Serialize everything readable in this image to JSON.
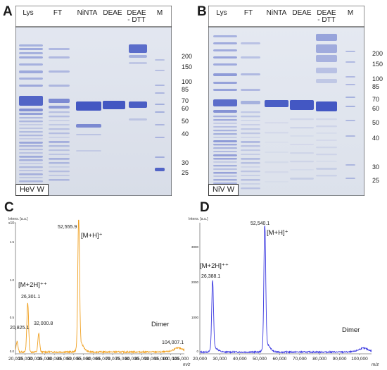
{
  "figure": {
    "panels": [
      {
        "letter": "A",
        "type": "sds-page-gel",
        "gel_label": "HeV W",
        "lanes": [
          "Lys",
          "FT",
          "NiNTA",
          "DEAE",
          "DEAE\n- DTT",
          "M"
        ],
        "marker_kda": [
          "200",
          "150",
          "100",
          "85",
          "70",
          "60",
          "50",
          "40",
          "30",
          "25"
        ],
        "colors": {
          "stain": "#3a4fc0",
          "background": "#dfe5ee"
        }
      },
      {
        "letter": "B",
        "type": "sds-page-gel",
        "gel_label": "NiV W",
        "lanes": [
          "Lys",
          "FT",
          "NiNTA",
          "DEAE",
          "DEAE\n- DTT",
          "M"
        ],
        "marker_kda": [
          "200",
          "150",
          "100",
          "85",
          "70",
          "60",
          "50",
          "40",
          "30",
          "25"
        ],
        "colors": {
          "stain": "#3a4fc0",
          "background": "#e3e8ef"
        }
      },
      {
        "letter": "C",
        "type": "mass-spectrum",
        "color": "#f0a020",
        "peak_labels": [
          {
            "text": "52,555.9",
            "mz": 52555.9
          },
          {
            "text": "26,301.1",
            "mz": 26301.1
          },
          {
            "text": "32,000.8",
            "mz": 32000.8
          },
          {
            "text": "20,825.1",
            "mz": 20825.1
          },
          {
            "text": "104,007.1",
            "mz": 104007.1
          }
        ],
        "ion_labels": [
          "[M+H]⁺",
          "[M+2H]⁺⁺",
          "Dimer"
        ],
        "x_ticks": [
          "20,000",
          "25,000",
          "30,000",
          "35,000",
          "40,000",
          "45,000",
          "50,000",
          "55,000",
          "60,000",
          "65,000",
          "70,000",
          "75,000",
          "80,000",
          "85,000",
          "90,000",
          "95,000",
          "100,000",
          "105,000"
        ],
        "x_unit": "m/z",
        "y_unit": "Intens. [a.u.]",
        "y_exponent": "x10⁴",
        "y_ticks": [
          "1.5",
          "1.0",
          "0.5",
          "0.0"
        ]
      },
      {
        "letter": "D",
        "type": "mass-spectrum",
        "color": "#3a38e0",
        "peak_labels": [
          {
            "text": "52,540.1",
            "mz": 52540.1
          },
          {
            "text": "26,388.1",
            "mz": 26388.1
          }
        ],
        "ion_labels": [
          "[M+H]⁺",
          "[M+2H]⁺⁺",
          "Dimer"
        ],
        "x_ticks": [
          "20,000",
          "30,000",
          "40,000",
          "50,000",
          "60,000",
          "70,000",
          "80,000",
          "90,000",
          "100,000"
        ],
        "x_unit": "m/z",
        "y_unit": "Intens. [a.u.]",
        "y_ticks": [
          "3000",
          "2000",
          "1000",
          "0"
        ]
      }
    ]
  },
  "chart_data": [
    {
      "type": "line",
      "x_range": [
        20000,
        107000
      ],
      "y_range": [
        0,
        1
      ],
      "series": [
        {
          "peaks": [
            {
              "x": 20825.1,
              "y": 0.08
            },
            {
              "x": 26301.1,
              "y": 0.38
            },
            {
              "x": 32000.8,
              "y": 0.14
            },
            {
              "x": 52555.9,
              "y": 1.0
            },
            {
              "x": 104007.1,
              "y": 0.03
            }
          ]
        }
      ]
    },
    {
      "type": "line",
      "x_range": [
        20000,
        106000
      ],
      "y_range": [
        0,
        1
      ],
      "series": [
        {
          "peaks": [
            {
              "x": 26388.1,
              "y": 0.55
            },
            {
              "x": 52540.1,
              "y": 1.0
            },
            {
              "x": 102000,
              "y": 0.03
            }
          ]
        }
      ]
    }
  ]
}
